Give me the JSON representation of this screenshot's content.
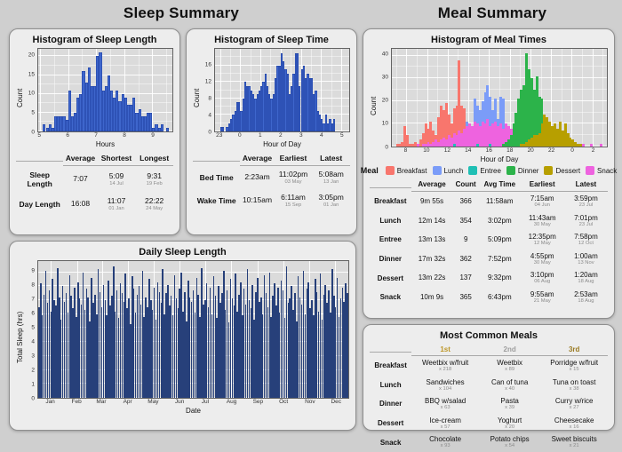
{
  "page": {
    "sleep_title": "Sleep Summary",
    "meal_title": "Meal Summary"
  },
  "panels": {
    "sleep_length": {
      "title": "Histogram of Sleep Length",
      "table": {
        "h1": "Average",
        "h2": "Shortest",
        "h3": "Longest",
        "rows": [
          {
            "label": "Sleep Length",
            "avg": "7:07",
            "v2": "5:09",
            "v2s": "14 Jul",
            "v3": "9:31",
            "v3s": "19 Feb"
          },
          {
            "label": "Day Length",
            "avg": "16:08",
            "v2": "11:07",
            "v2s": "01 Jan",
            "v3": "22:22",
            "v3s": "24 May"
          }
        ]
      }
    },
    "sleep_time": {
      "title": "Histogram of Sleep Time",
      "table": {
        "h1": "Average",
        "h2": "Earliest",
        "h3": "Latest",
        "rows": [
          {
            "label": "Bed Time",
            "avg": "2:23am",
            "v2": "11:02pm",
            "v2s": "03 May",
            "v3": "5:08am",
            "v3s": "13 Jan"
          },
          {
            "label": "Wake Time",
            "avg": "10:15am",
            "v2": "6:11am",
            "v2s": "15 Sep",
            "v3": "3:05pm",
            "v3s": "01 Jan"
          }
        ]
      }
    },
    "meal_times": {
      "title": "Histogram of Meal Times",
      "legend": {
        "label": "Meal",
        "items": [
          {
            "name": "Breakfast",
            "color": "#F8766D"
          },
          {
            "name": "Lunch",
            "color": "#7B9CF8"
          },
          {
            "name": "Entree",
            "color": "#1FBFB4"
          },
          {
            "name": "Dinner",
            "color": "#2CB34A"
          },
          {
            "name": "Dessert",
            "color": "#B79F00"
          },
          {
            "name": "Snack",
            "color": "#EE63DF"
          }
        ]
      },
      "table": {
        "h1": "Average",
        "h2": "Count",
        "h3": "Avg Time",
        "h4": "Earliest",
        "h5": "Latest",
        "rows": [
          {
            "label": "Breakfast",
            "avg": "9m 55s",
            "count": "366",
            "avgtime": "11:58am",
            "v4": "7:15am",
            "v4s": "04 Jun",
            "v5": "3:59pm",
            "v5s": "23 Jul"
          },
          {
            "label": "Lunch",
            "avg": "12m 14s",
            "count": "354",
            "avgtime": "3:02pm",
            "v4": "11:43am",
            "v4s": "30 May",
            "v5": "7:01pm",
            "v5s": "23 Jul"
          },
          {
            "label": "Entree",
            "avg": "13m 13s",
            "count": "9",
            "avgtime": "5:09pm",
            "v4": "12:35pm",
            "v4s": "12 May",
            "v5": "7:58pm",
            "v5s": "12 Oct"
          },
          {
            "label": "Dinner",
            "avg": "17m 32s",
            "count": "362",
            "avgtime": "7:52pm",
            "v4": "4:55pm",
            "v4s": "30 May",
            "v5": "1:00am",
            "v5s": "13 Nov"
          },
          {
            "label": "Dessert",
            "avg": "13m 22s",
            "count": "137",
            "avgtime": "9:32pm",
            "v4": "3:10pm",
            "v4s": "06 Aug",
            "v5": "1:20am",
            "v5s": "18 Aug"
          },
          {
            "label": "Snack",
            "avg": "10m 9s",
            "count": "365",
            "avgtime": "6:43pm",
            "v4": "9:55am",
            "v4s": "21 May",
            "v5": "2:53am",
            "v5s": "18 Aug"
          }
        ]
      }
    },
    "daily_sleep": {
      "title": "Daily Sleep Length"
    },
    "common_meals": {
      "title": "Most Common Meals",
      "h1": "1st",
      "h2": "2nd",
      "h3": "3rd",
      "medal_colors": {
        "first": "#BD9727",
        "second": "#9E9E9E",
        "third": "#9A7B24"
      },
      "rows": [
        {
          "label": "Breakfast",
          "m1": "Weetbix w/fruit",
          "m1c": "x 218",
          "m2": "Weetbix",
          "m2c": "x 89",
          "m3": "Porridge w/fruit",
          "m3c": "x 15"
        },
        {
          "label": "Lunch",
          "m1": "Sandwiches",
          "m1c": "x 104",
          "m2": "Can of tuna",
          "m2c": "x 40",
          "m3": "Tuna on toast",
          "m3c": "x 38"
        },
        {
          "label": "Dinner",
          "m1": "BBQ w/salad",
          "m1c": "x 63",
          "m2": "Pasta",
          "m2c": "x 39",
          "m3": "Curry w/rice",
          "m3c": "x 27"
        },
        {
          "label": "Dessert",
          "m1": "Ice-cream",
          "m1c": "x 57",
          "m2": "Yoghurt",
          "m2c": "x 20",
          "m3": "Cheesecake",
          "m3c": "x 16"
        },
        {
          "label": "Snack",
          "m1": "Chocolate",
          "m1c": "x 93",
          "m2": "Potato chips",
          "m2c": "x 54",
          "m3": "Sweet biscuits",
          "m3c": "x 21"
        }
      ]
    }
  },
  "chart_data": [
    {
      "id": "sleep_length_hist",
      "type": "bar",
      "title": "Histogram of Sleep Length",
      "xlabel": "Hours",
      "ylabel": "Count",
      "xlim": [
        4.93,
        9.72
      ],
      "ylim": [
        0,
        22
      ],
      "xticks": [
        5,
        6,
        7,
        8,
        9
      ],
      "yticks": [
        0,
        5,
        10,
        15,
        20
      ],
      "minor_xticks": [
        5.5,
        6.5,
        7.5,
        8.5,
        9.5
      ],
      "minor_yticks": [
        2.5,
        7.5,
        12.5,
        17.5
      ],
      "series": [
        {
          "name": "Sleep Length",
          "color": "#3E66CC",
          "stroke": "#1E3FA0",
          "start": 5.1,
          "bin": 0.1,
          "counts": [
            2,
            1,
            2,
            1,
            4,
            4,
            4,
            4,
            3,
            11,
            4,
            5,
            9,
            10,
            16,
            13,
            17,
            12,
            12,
            20,
            21,
            11,
            12,
            15,
            11,
            9,
            11,
            8,
            10,
            9,
            7,
            7,
            9,
            5,
            6,
            4,
            4,
            5,
            5,
            1,
            2,
            1,
            2,
            0,
            1
          ]
        }
      ]
    },
    {
      "id": "sleep_time_hist",
      "type": "bar",
      "title": "Histogram of Sleep Time",
      "xlabel": "Hour of Day",
      "ylabel": "Count",
      "xlim": [
        22.75,
        29.4
      ],
      "ylim": [
        0,
        20
      ],
      "xticks": [
        {
          "v": 23,
          "label": "23"
        },
        {
          "v": 24,
          "label": "0"
        },
        {
          "v": 25,
          "label": "1"
        },
        {
          "v": 26,
          "label": "2"
        },
        {
          "v": 27,
          "label": "3"
        },
        {
          "v": 28,
          "label": "4"
        },
        {
          "v": 29,
          "label": "5"
        }
      ],
      "yticks": [
        0,
        4,
        8,
        12,
        16
      ],
      "minor_xticks": [
        23.5,
        24.5,
        25.5,
        26.5,
        27.5,
        28.5
      ],
      "minor_yticks": [
        2,
        6,
        10,
        14,
        18
      ],
      "series": [
        {
          "name": "Sleep Time",
          "color": "#3E66CC",
          "stroke": "#1E3FA0",
          "start": 23.0,
          "bin": 0.1,
          "counts": [
            1,
            1,
            0,
            1,
            2,
            3,
            4,
            5,
            7,
            7,
            5,
            8,
            12,
            11,
            11,
            10,
            9,
            8,
            9,
            10,
            11,
            12,
            14,
            11,
            9,
            8,
            9,
            13,
            16,
            16,
            19,
            17,
            15,
            14,
            9,
            11,
            14,
            19,
            19,
            11,
            15,
            16,
            13,
            14,
            13,
            13,
            9,
            10,
            5,
            4,
            3,
            2,
            4,
            2,
            3,
            2,
            3
          ]
        }
      ]
    },
    {
      "id": "meal_times_hist",
      "type": "bar",
      "title": "Histogram of Meal Times",
      "xlabel": "Hour of Day",
      "ylabel": "Count",
      "xlim": [
        6.6,
        27.4
      ],
      "ylim": [
        0,
        43
      ],
      "xticks": [
        {
          "v": 8,
          "label": "8"
        },
        {
          "v": 10,
          "label": "10"
        },
        {
          "v": 12,
          "label": "12"
        },
        {
          "v": 14,
          "label": "14"
        },
        {
          "v": 16,
          "label": "16"
        },
        {
          "v": 18,
          "label": "18"
        },
        {
          "v": 20,
          "label": "20"
        },
        {
          "v": 22,
          "label": "22"
        },
        {
          "v": 24,
          "label": "0"
        },
        {
          "v": 26,
          "label": "2"
        }
      ],
      "yticks": [
        0,
        10,
        20,
        30,
        40
      ],
      "minor_xticks": [
        7,
        9,
        11,
        13,
        15,
        17,
        19,
        21,
        23,
        25,
        27
      ],
      "minor_yticks": [
        5,
        15,
        25,
        35
      ],
      "series": [
        {
          "name": "Breakfast",
          "color": "#F8766D",
          "start": 7.0,
          "bin": 0.25,
          "counts": [
            1,
            1,
            2,
            9,
            5,
            1,
            1,
            2,
            1,
            3,
            6,
            10,
            8,
            11,
            7,
            5,
            13,
            18,
            16,
            19,
            14,
            10,
            17,
            18,
            38,
            18,
            17,
            6,
            3,
            2,
            1
          ]
        },
        {
          "name": "Lunch",
          "color": "#7B9CF8",
          "start": 13.25,
          "bin": 0.25,
          "counts": [
            1,
            3,
            11,
            5,
            9,
            21,
            18,
            16,
            20,
            24,
            27,
            22,
            16,
            21,
            12,
            22,
            21,
            8,
            4,
            2,
            1
          ]
        },
        {
          "name": "Snack",
          "color": "#EE63DF",
          "start": 9.0,
          "bin": 0.25,
          "counts": [
            1,
            0,
            1,
            1,
            2,
            1,
            2,
            3,
            2,
            3,
            4,
            3,
            5,
            4,
            6,
            5,
            7,
            6,
            8,
            9,
            10,
            9,
            11,
            10,
            9,
            11,
            10,
            12,
            9,
            10,
            11,
            9,
            10,
            8,
            10,
            9,
            8,
            9,
            10,
            11,
            12,
            11,
            13,
            14,
            12,
            10,
            9,
            8,
            7,
            6,
            5,
            4,
            4,
            3,
            3,
            2,
            2,
            2,
            1,
            1,
            2,
            1,
            1,
            0,
            1,
            0,
            0,
            1,
            0,
            0,
            0,
            1
          ]
        },
        {
          "name": "Entree",
          "color": "#1FBFB4",
          "start": 12.5,
          "bin": 0.25,
          "counts": [
            1,
            0,
            0,
            0,
            0,
            0,
            0,
            0,
            0,
            1,
            0,
            0,
            0,
            0,
            1,
            0,
            0,
            0,
            0,
            1,
            0,
            0,
            1,
            0,
            1,
            0,
            1,
            0,
            1,
            0,
            0,
            1
          ]
        },
        {
          "name": "Dinner",
          "color": "#2CB34A",
          "start": 17.25,
          "bin": 0.25,
          "counts": [
            1,
            2,
            3,
            5,
            10,
            15,
            21,
            25,
            27,
            41,
            34,
            30,
            25,
            31,
            22,
            21,
            10,
            3,
            1
          ]
        },
        {
          "name": "Dessert",
          "color": "#B79F00",
          "start": 19.0,
          "bin": 0.25,
          "counts": [
            1,
            1,
            2,
            3,
            4,
            5,
            5,
            6,
            10,
            14,
            13,
            11,
            9,
            10,
            8,
            11,
            7,
            10,
            6,
            4,
            3,
            2,
            1,
            1
          ]
        }
      ]
    },
    {
      "id": "daily_sleep_chart",
      "type": "bar",
      "title": "Daily Sleep Length",
      "xlabel": "Date",
      "ylabel": "Total Sleep (hrs)",
      "xlim": [
        0,
        183
      ],
      "ylim": [
        0,
        9.8
      ],
      "xticks": [
        {
          "v": 7.6,
          "label": "Jan"
        },
        {
          "v": 23,
          "label": "Feb"
        },
        {
          "v": 37.5,
          "label": "Mar"
        },
        {
          "v": 53,
          "label": "Apr"
        },
        {
          "v": 68,
          "label": "May"
        },
        {
          "v": 83.5,
          "label": "Jun"
        },
        {
          "v": 98.5,
          "label": "Jul"
        },
        {
          "v": 114,
          "label": "Aug"
        },
        {
          "v": 129.5,
          "label": "Sep"
        },
        {
          "v": 144.5,
          "label": "Oct"
        },
        {
          "v": 160,
          "label": "Nov"
        },
        {
          "v": 175.3,
          "label": "Dec"
        }
      ],
      "yticks": [
        0,
        1,
        2,
        3,
        4,
        5,
        6,
        7,
        8,
        9
      ],
      "minor_xticks": [],
      "minor_yticks": [],
      "series": [
        {
          "name": "Total Sleep",
          "color": "#27407A",
          "start": 0.1,
          "bin": 1,
          "shrink": 0.78,
          "counts": [
            6.5,
            8.2,
            5.9,
            7.4,
            9.1,
            6.8,
            7.7,
            6.2,
            8.5,
            7.0,
            6.6,
            9.3,
            7.2,
            5.6,
            8.0,
            6.9,
            7.5,
            6.1,
            8.8,
            7.3,
            6.4,
            7.9,
            5.8,
            8.3,
            7.1,
            6.7,
            9.0,
            6.3,
            7.8,
            7.2,
            5.5,
            8.6,
            6.8,
            7.4,
            6.0,
            9.2,
            7.6,
            6.5,
            8.1,
            7.0,
            5.9,
            8.4,
            6.6,
            7.3,
            9.4,
            6.2,
            7.7,
            5.7,
            8.2,
            7.5,
            6.9,
            8.9,
            6.4,
            7.1,
            5.3,
            8.7,
            7.8,
            6.1,
            7.4,
            8.0,
            6.7,
            9.1,
            5.8,
            7.2,
            6.5,
            8.5,
            7.0,
            6.3,
            7.9,
            5.6,
            8.3,
            7.6,
            6.8,
            9.2,
            6.0,
            7.5,
            8.1,
            6.6,
            7.3,
            5.9,
            8.8,
            7.1,
            6.4,
            7.8,
            9.0,
            6.2,
            7.6,
            5.5,
            8.4,
            7.2,
            6.9,
            7.7,
            6.1,
            8.6,
            7.4,
            5.8,
            9.3,
            6.7,
            7.0,
            8.2,
            6.5,
            7.9,
            6.0,
            8.7,
            7.3,
            5.7,
            8.0,
            6.8,
            7.5,
            9.1,
            6.3,
            7.7,
            5.4,
            8.5,
            7.1,
            6.6,
            8.9,
            6.2,
            7.4,
            8.3,
            5.9,
            7.8,
            6.7,
            9.2,
            7.0,
            6.4,
            8.1,
            5.6,
            7.6,
            8.6,
            6.9,
            7.2,
            6.0,
            8.8,
            7.5,
            6.5,
            9.0,
            5.8,
            7.3,
            8.2,
            6.6,
            7.9,
            6.1,
            8.4,
            7.7,
            5.7,
            9.4,
            6.8,
            7.1,
            8.0,
            6.3,
            7.5,
            5.5,
            8.7,
            7.2,
            6.7,
            9.1,
            6.0,
            7.8,
            8.3,
            6.4,
            7.0,
            5.9,
            8.5,
            7.6,
            6.2,
            8.9,
            5.6,
            7.4,
            8.1,
            6.8,
            7.7,
            6.1,
            9.2,
            7.3,
            6.5,
            8.6,
            5.8,
            7.1,
            7.9,
            6.9,
            8.2,
            7.5
          ]
        }
      ]
    }
  ]
}
